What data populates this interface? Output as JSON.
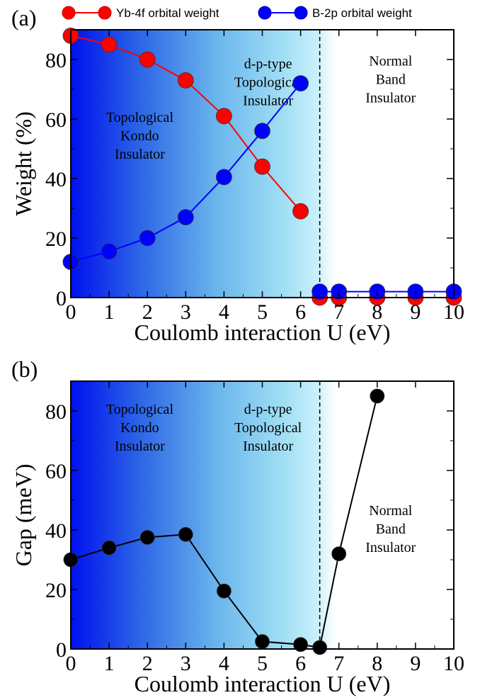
{
  "chart_data": [
    {
      "panel_label": "(a)",
      "type": "line",
      "xlabel": "Coulomb interaction U (eV)",
      "ylabel": "Weight (%)",
      "xlim": [
        0,
        10
      ],
      "ylim": [
        0,
        90
      ],
      "xticks": [
        0,
        1,
        2,
        3,
        4,
        5,
        6,
        7,
        8,
        9,
        10
      ],
      "yticks": [
        0,
        20,
        40,
        60,
        80
      ],
      "grid": false,
      "legend_placement": "top, above plot",
      "transition_line_x": 6.5,
      "regions": [
        {
          "label_lines": [
            "Topological",
            "Kondo",
            "Insulator"
          ],
          "x": 1.8,
          "y": 59
        },
        {
          "label_lines": [
            "d-p-type",
            "Topological",
            "Insulator"
          ],
          "x": 5.15,
          "y": 77
        },
        {
          "label_lines": [
            "Normal",
            "Band",
            "Insulator"
          ],
          "x": 8.35,
          "y": 78
        }
      ],
      "series": [
        {
          "name": "Yb-4f orbital weight",
          "color": "#ff0000",
          "x": [
            0,
            1,
            2,
            3,
            4,
            5,
            6,
            6.5,
            7,
            8,
            9,
            10
          ],
          "y": [
            88,
            85,
            80,
            73,
            61,
            44,
            29,
            0,
            0,
            0,
            0,
            0
          ],
          "segments": [
            [
              0,
              6
            ],
            [
              7,
              11
            ]
          ]
        },
        {
          "name": "B-2p orbital weight",
          "color": "#0000ff",
          "x": [
            0,
            1,
            2,
            3,
            4,
            5,
            6,
            6.5,
            7,
            8,
            9,
            10
          ],
          "y": [
            12,
            15.5,
            20,
            27,
            40.5,
            56,
            72,
            2,
            2,
            2,
            2,
            2
          ],
          "segments": [
            [
              0,
              6
            ],
            [
              7,
              11
            ]
          ]
        }
      ]
    },
    {
      "panel_label": "(b)",
      "type": "line",
      "xlabel": "Coulomb interaction U (eV)",
      "ylabel": "Gap (meV)",
      "xlim": [
        0,
        10
      ],
      "ylim": [
        0,
        90
      ],
      "xticks": [
        0,
        1,
        2,
        3,
        4,
        5,
        6,
        7,
        8,
        9,
        10
      ],
      "yticks": [
        0,
        20,
        40,
        60,
        80
      ],
      "grid": false,
      "transition_line_x": 6.5,
      "regions": [
        {
          "label_lines": [
            "Topological",
            "Kondo",
            "Insulator"
          ],
          "x": 1.8,
          "y": 79
        },
        {
          "label_lines": [
            "d-p-type",
            "Topological",
            "Insulator"
          ],
          "x": 5.15,
          "y": 79
        },
        {
          "label_lines": [
            "Normal",
            "Band",
            "Insulator"
          ],
          "x": 8.35,
          "y": 45
        }
      ],
      "series": [
        {
          "color": "#000000",
          "x": [
            0,
            1,
            2,
            3,
            4,
            5,
            6,
            6.5,
            7,
            8
          ],
          "y": [
            30,
            34,
            37.5,
            38.5,
            19.5,
            2.5,
            1.5,
            0.5,
            32,
            85
          ],
          "segments": [
            [
              0,
              9
            ]
          ]
        }
      ]
    }
  ]
}
